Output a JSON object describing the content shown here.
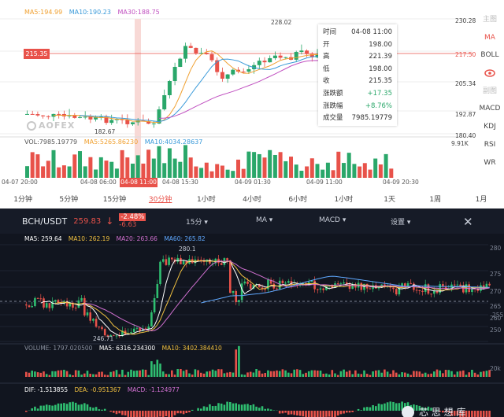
{
  "top": {
    "ma_legend": {
      "ma5": "MA5:194.99",
      "ma10": "MA10:190.23",
      "ma30": "MA30:188.75"
    },
    "vol_legend": {
      "vol": "VOL:7985.19779",
      "ma5": "MA5:5265.86230",
      "ma10": "MA10:4034.28637"
    },
    "current_price_tag": "215.35",
    "high_label": "228.02",
    "low_label": "182.67",
    "watermark": "AOFEX",
    "right_axis": {
      "p1": "230.28",
      "p2": "217.50",
      "p3": "205.34",
      "p4": "192.87",
      "p5": "180.40",
      "vol_max": "9.91K"
    },
    "tooltip": {
      "rows": [
        {
          "k": "时间",
          "v": "04-08 11:00"
        },
        {
          "k": "开",
          "v": "198.00"
        },
        {
          "k": "高",
          "v": "221.39"
        },
        {
          "k": "低",
          "v": "198.00"
        },
        {
          "k": "收",
          "v": "215.35"
        },
        {
          "k": "涨跌额",
          "v": "+17.35"
        },
        {
          "k": "涨跌幅",
          "v": "+8.76%"
        },
        {
          "k": "成交量",
          "v": "7985.19779"
        }
      ]
    },
    "side_menu": [
      "主图",
      "MA",
      "BOLL",
      "eye-icon",
      "副图",
      "MACD",
      "KDJ",
      "RSI",
      "WR"
    ],
    "time_labels": [
      "04-07 20:00",
      "04-08 06:00",
      "04-08 11:00",
      "04-08 15:30",
      "04-09 01:30",
      "04-09 11:00",
      "04-09 20:30"
    ],
    "intervals": [
      "1分钟",
      "5分钟",
      "15分钟",
      "30分钟",
      "1小时",
      "4小时",
      "6小时",
      "1小时",
      "1天",
      "1周",
      "1月"
    ],
    "selected_interval": "30分钟",
    "colors": {
      "ma5": "#f0a030",
      "ma10": "#3a9ad9",
      "ma30": "#c050c0",
      "up": "#2aa76a",
      "down": "#e8524a"
    }
  },
  "bottom": {
    "pair": "BCH/USDT",
    "price": "259.83",
    "change_pct": "-2.48%",
    "change_abs": "-6.63",
    "dropdowns": {
      "interval": "15分",
      "ma": "MA",
      "macd": "MACD",
      "settings": "设置"
    },
    "ma_legend": {
      "ma5": "MA5: 259.64",
      "ma10": "MA10: 262.19",
      "ma20": "MA20: 263.66",
      "ma60": "MA60: 265.82"
    },
    "high_label": "280.1",
    "low_label": "246.71",
    "right_axis": [
      "280",
      "275",
      "270",
      "265",
      "260",
      "255",
      "250"
    ],
    "vol_legend": {
      "vol": "VOLUME: 1797.020500",
      "ma5": "MA5: 6316.234300",
      "ma10": "MA10: 3402.384410"
    },
    "vol_axis": "20k",
    "macd_legend": {
      "dif": "DIF: -1.513855",
      "dea": "DEA: -0.951367",
      "macd": "MACD: -1.124977"
    },
    "watermark": "芯 思 想 库",
    "colors": {
      "ma5": "#ffffff",
      "ma10": "#f0c040",
      "ma20": "#d070d0",
      "ma60": "#5fa8ff",
      "up": "#2fbf71",
      "down": "#e8524a"
    }
  }
}
